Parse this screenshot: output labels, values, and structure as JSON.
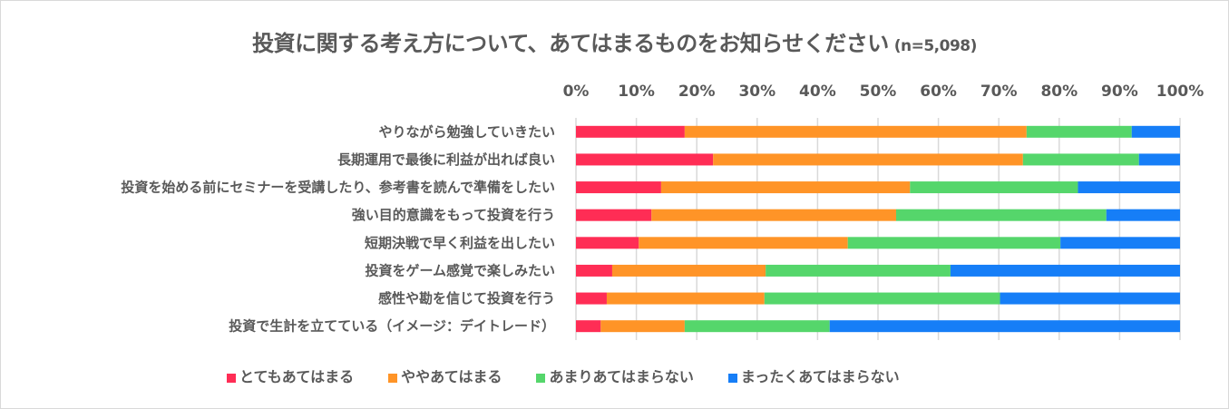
{
  "chart_data": {
    "type": "bar",
    "orientation": "horizontal-stacked-100",
    "title": "投資に関する考え方について、あてはまるものをお知らせください",
    "subtitle": "(n=5,098)",
    "xlabel": "",
    "ylabel": "",
    "xlim": [
      0,
      100
    ],
    "x_ticks": [
      "0%",
      "10%",
      "20%",
      "30%",
      "40%",
      "50%",
      "60%",
      "70%",
      "80%",
      "90%",
      "100%"
    ],
    "x_axis_position": "top",
    "grid": true,
    "legend_position": "bottom",
    "categories": [
      "やりながら勉強していきたい",
      "長期運用で最後に利益が出れば良い",
      "投資を始める前にセミナーを受講したり、参考書を読んで準備をしたい",
      "強い目的意識をもって投資を行う",
      "短期決戦で早く利益を出したい",
      "投資をゲーム感覚で楽しみたい",
      "感性や勘を信じて投資を行う",
      "投資で生計を立てている（イメージ：デイトレード）"
    ],
    "series": [
      {
        "name": "とてもあてはまる",
        "color": "#FF2D55",
        "values": [
          18.0,
          22.7,
          14.1,
          12.5,
          10.4,
          6.0,
          5.1,
          4.1
        ]
      },
      {
        "name": "ややあてはまる",
        "color": "#FF9427",
        "values": [
          56.6,
          51.3,
          41.2,
          40.5,
          34.6,
          25.4,
          26.1,
          13.9
        ]
      },
      {
        "name": "あまりあてはまらない",
        "color": "#55D66B",
        "values": [
          17.4,
          19.2,
          27.8,
          34.8,
          35.2,
          30.6,
          39.0,
          24.0
        ]
      },
      {
        "name": "まったくあてはまらない",
        "color": "#167EF7",
        "values": [
          8.0,
          6.8,
          16.9,
          12.2,
          19.8,
          38.0,
          29.8,
          58.0
        ]
      }
    ]
  },
  "colors": {
    "text": "#595959",
    "grid": "#d9d9d9"
  }
}
